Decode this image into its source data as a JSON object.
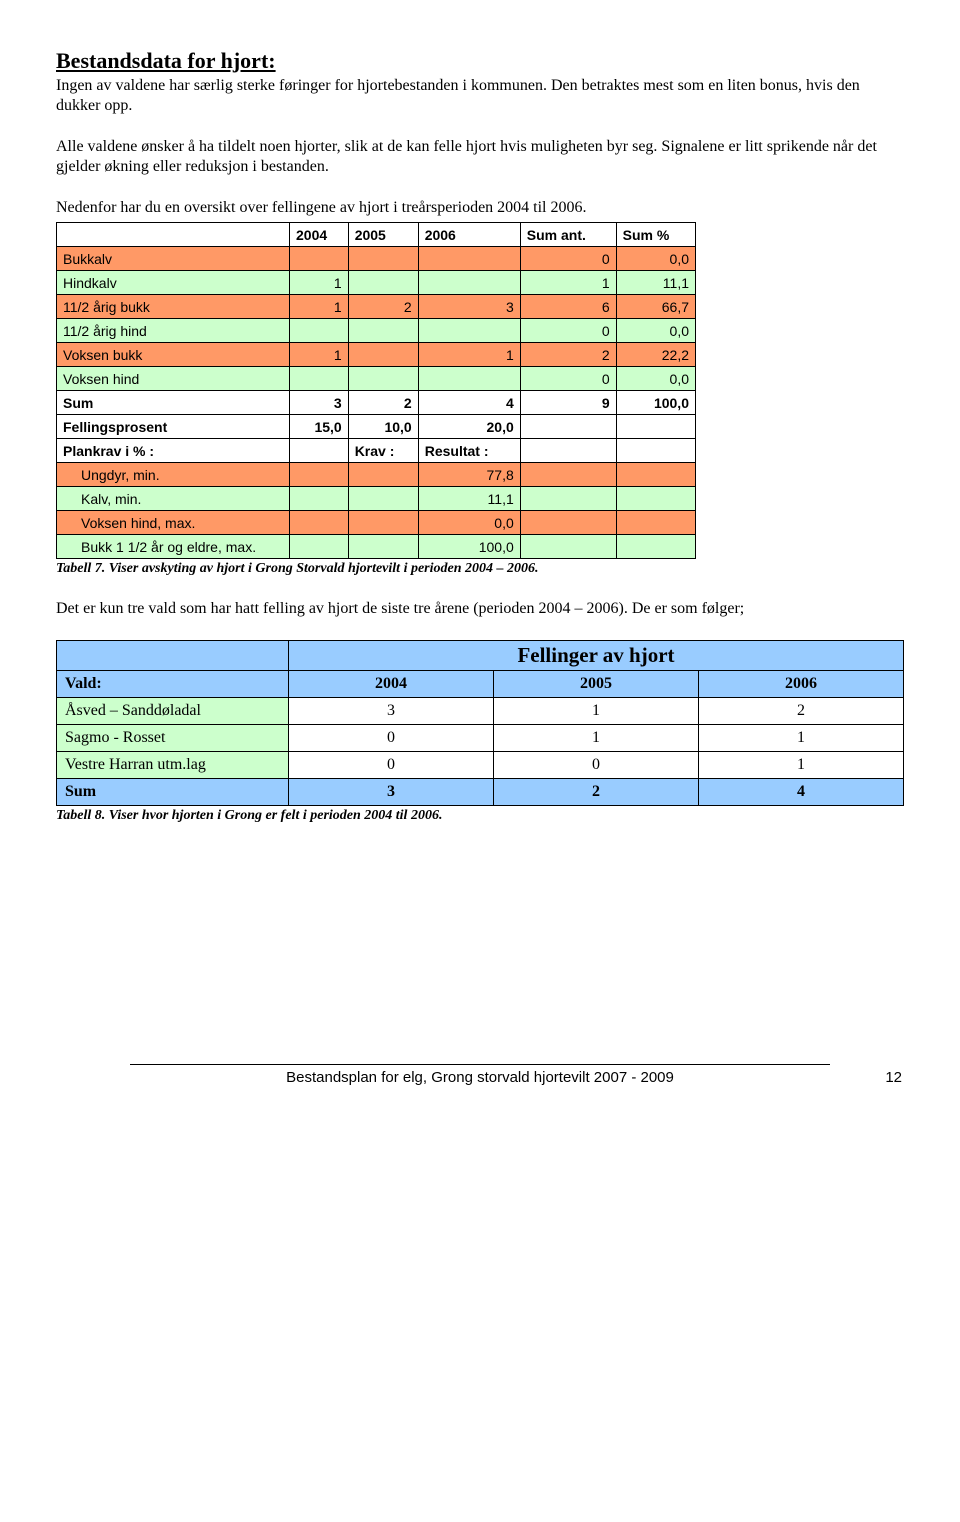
{
  "heading": "Bestandsdata for hjort:",
  "para1": "Ingen av valdene har særlig sterke føringer for hjortebestanden i kommunen. Den betraktes mest som en liten bonus, hvis den dukker opp.",
  "para2": "Alle valdene ønsker å ha tildelt noen hjorter, slik at de kan felle hjort hvis muligheten byr seg. Signalene er litt sprikende når det gjelder økning eller reduksjon i bestanden.",
  "para3": "Nedenfor har du en oversikt over fellingene av hjort i treårsperioden 2004 til 2006.",
  "t1": {
    "headers": [
      "2004",
      "2005",
      "2006",
      "Sum ant.",
      "Sum %"
    ],
    "rows": [
      {
        "style": "salmon",
        "label": "Bukkalv",
        "v": [
          "",
          "",
          "",
          "0",
          "0,0"
        ]
      },
      {
        "style": "green",
        "label": "Hindkalv",
        "v": [
          "1",
          "",
          "",
          "1",
          "11,1"
        ]
      },
      {
        "style": "salmon",
        "label": "11/2 årig bukk",
        "v": [
          "1",
          "2",
          "3",
          "6",
          "66,7"
        ]
      },
      {
        "style": "green",
        "label": "11/2 årig hind",
        "v": [
          "",
          "",
          "",
          "0",
          "0,0"
        ]
      },
      {
        "style": "salmon",
        "label": "Voksen bukk",
        "v": [
          "1",
          "",
          "1",
          "2",
          "22,2"
        ]
      },
      {
        "style": "green",
        "label": "Voksen hind",
        "v": [
          "",
          "",
          "",
          "0",
          "0,0"
        ]
      }
    ],
    "sum": {
      "label": "Sum",
      "v": [
        "3",
        "2",
        "4",
        "9",
        "100,0"
      ]
    },
    "fp": {
      "label": "Fellingsprosent",
      "v": [
        "15,0",
        "10,0",
        "20,0"
      ]
    },
    "plan": {
      "label": "Plankrav i % :",
      "krav": "Krav :",
      "res": "Resultat :"
    },
    "sub": [
      {
        "style": "salmon",
        "label": "Ungdyr, min.",
        "v": "77,8"
      },
      {
        "style": "green",
        "label": "Kalv, min.",
        "v": "11,1"
      },
      {
        "style": "salmon",
        "label": "Voksen hind, max.",
        "v": "0,0"
      },
      {
        "style": "green",
        "label": "Bukk 1 1/2 år og eldre, max.",
        "v": "100,0"
      }
    ]
  },
  "caption1": "Tabell 7.  Viser avskyting av hjort i Grong Storvald hjortevilt i perioden 2004 – 2006.",
  "para4": "Det er kun tre vald som har hatt felling av hjort de siste tre årene (perioden 2004 – 2006). De er som følger;",
  "t2": {
    "title": "Fellinger av hjort",
    "cols": [
      "Vald:",
      "2004",
      "2005",
      "2006"
    ],
    "rows": [
      {
        "bold": false,
        "label": "Åsved – Sanddøladal",
        "v": [
          "3",
          "1",
          "2"
        ]
      },
      {
        "bold": false,
        "label": "Sagmo - Rosset",
        "v": [
          "0",
          "1",
          "1"
        ]
      },
      {
        "bold": false,
        "label": "Vestre Harran utm.lag",
        "v": [
          "0",
          "0",
          "1"
        ]
      },
      {
        "bold": true,
        "label": "Sum",
        "v": [
          "3",
          "2",
          "4"
        ]
      }
    ]
  },
  "caption2": "Tabell 8.  Viser hvor hjorten i Grong er felt i perioden 2004 til 2006.",
  "footer": {
    "text": "Bestandsplan for elg, Grong storvald hjortevilt 2007 - 2009",
    "page": "12"
  }
}
